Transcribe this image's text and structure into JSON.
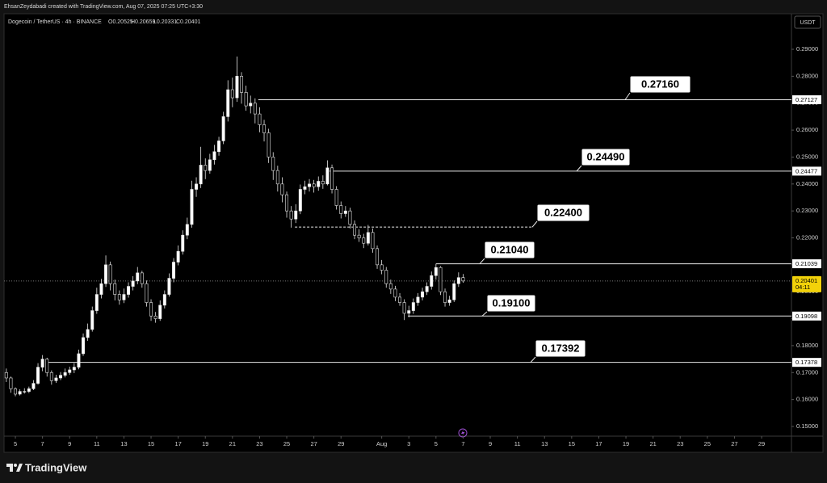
{
  "chart_data": {
    "type": "candlestick",
    "attribution": "EhsanZeydabadi created with TradingView.com, Aug 07, 2025 07:25 UTC+3:30",
    "title": "Dogecoin / TetherUS · 4h · BINANCE",
    "ohlc_labels": [
      "O0.20525",
      "H0.20659",
      "L0.20331",
      "C0.20401"
    ],
    "currency": "USDT",
    "brand": "TradingView",
    "up_color": "#ffffff",
    "down_color": "#000000",
    "border_color": "#e6e6e6",
    "ohlc": [
      [
        0.17,
        0.1715,
        0.1665,
        0.168
      ],
      [
        0.168,
        0.1685,
        0.1625,
        0.164
      ],
      [
        0.164,
        0.1645,
        0.1612,
        0.162
      ],
      [
        0.162,
        0.1638,
        0.1615,
        0.163
      ],
      [
        0.163,
        0.1642,
        0.1622,
        0.163
      ],
      [
        0.163,
        0.1648,
        0.1624,
        0.164
      ],
      [
        0.164,
        0.1672,
        0.1635,
        0.166
      ],
      [
        0.166,
        0.1735,
        0.1655,
        0.172
      ],
      [
        0.172,
        0.1765,
        0.1705,
        0.175
      ],
      [
        0.175,
        0.1755,
        0.1685,
        0.17
      ],
      [
        0.17,
        0.1708,
        0.1655,
        0.167
      ],
      [
        0.167,
        0.1692,
        0.1662,
        0.168
      ],
      [
        0.168,
        0.1702,
        0.1672,
        0.169
      ],
      [
        0.169,
        0.1715,
        0.1682,
        0.17
      ],
      [
        0.17,
        0.1722,
        0.1692,
        0.171
      ],
      [
        0.171,
        0.1735,
        0.1698,
        0.172
      ],
      [
        0.172,
        0.1785,
        0.1712,
        0.177
      ],
      [
        0.177,
        0.1845,
        0.1762,
        0.183
      ],
      [
        0.183,
        0.1882,
        0.1818,
        0.186
      ],
      [
        0.186,
        0.1945,
        0.1852,
        0.193
      ],
      [
        0.193,
        0.2015,
        0.1918,
        0.199
      ],
      [
        0.199,
        0.2048,
        0.1975,
        0.203
      ],
      [
        0.203,
        0.2135,
        0.2018,
        0.21
      ],
      [
        0.21,
        0.2112,
        0.2005,
        0.203
      ],
      [
        0.203,
        0.2045,
        0.1968,
        0.199
      ],
      [
        0.199,
        0.2005,
        0.1952,
        0.197
      ],
      [
        0.197,
        0.2012,
        0.1958,
        0.199
      ],
      [
        0.199,
        0.2035,
        0.1978,
        0.202
      ],
      [
        0.202,
        0.2058,
        0.2005,
        0.204
      ],
      [
        0.204,
        0.2092,
        0.2028,
        0.207
      ],
      [
        0.207,
        0.2078,
        0.2015,
        0.203
      ],
      [
        0.203,
        0.2042,
        0.1945,
        0.196
      ],
      [
        0.196,
        0.1972,
        0.1892,
        0.191
      ],
      [
        0.191,
        0.1925,
        0.1885,
        0.19
      ],
      [
        0.19,
        0.1968,
        0.1892,
        0.195
      ],
      [
        0.195,
        0.2005,
        0.1938,
        0.199
      ],
      [
        0.199,
        0.2068,
        0.1982,
        0.205
      ],
      [
        0.205,
        0.2125,
        0.2035,
        0.211
      ],
      [
        0.211,
        0.2172,
        0.2098,
        0.215
      ],
      [
        0.215,
        0.2228,
        0.2138,
        0.221
      ],
      [
        0.221,
        0.2275,
        0.2195,
        0.225
      ],
      [
        0.225,
        0.2412,
        0.2238,
        0.238
      ],
      [
        0.238,
        0.2425,
        0.2352,
        0.24
      ],
      [
        0.24,
        0.2538,
        0.2385,
        0.247
      ],
      [
        0.247,
        0.2495,
        0.2418,
        0.245
      ],
      [
        0.245,
        0.2512,
        0.2438,
        0.249
      ],
      [
        0.249,
        0.2545,
        0.2472,
        0.252
      ],
      [
        0.252,
        0.2575,
        0.2505,
        0.256
      ],
      [
        0.256,
        0.2668,
        0.2548,
        0.265
      ],
      [
        0.265,
        0.2785,
        0.2632,
        0.275
      ],
      [
        0.275,
        0.2795,
        0.2685,
        0.272
      ],
      [
        0.272,
        0.2873,
        0.2705,
        0.28
      ],
      [
        0.28,
        0.2815,
        0.2698,
        0.274
      ],
      [
        0.274,
        0.2765,
        0.2672,
        0.269
      ],
      [
        0.269,
        0.2728,
        0.2662,
        0.27
      ],
      [
        0.27,
        0.2718,
        0.2625,
        0.266
      ],
      [
        0.266,
        0.2685,
        0.2592,
        0.262
      ],
      [
        0.262,
        0.2638,
        0.2558,
        0.259
      ],
      [
        0.259,
        0.2605,
        0.2478,
        0.25
      ],
      [
        0.25,
        0.2518,
        0.2415,
        0.245
      ],
      [
        0.245,
        0.2468,
        0.2372,
        0.24
      ],
      [
        0.24,
        0.2425,
        0.2332,
        0.236
      ],
      [
        0.236,
        0.2372,
        0.2275,
        0.23
      ],
      [
        0.23,
        0.2318,
        0.2238,
        0.227
      ],
      [
        0.227,
        0.2325,
        0.2255,
        0.23
      ],
      [
        0.23,
        0.2398,
        0.2288,
        0.238
      ],
      [
        0.238,
        0.2412,
        0.2362,
        0.239
      ],
      [
        0.239,
        0.2418,
        0.2372,
        0.24
      ],
      [
        0.24,
        0.2415,
        0.2368,
        0.239
      ],
      [
        0.239,
        0.2428,
        0.2375,
        0.241
      ],
      [
        0.241,
        0.2432,
        0.2382,
        0.24
      ],
      [
        0.24,
        0.2488,
        0.2395,
        0.246
      ],
      [
        0.246,
        0.2472,
        0.2365,
        0.238
      ],
      [
        0.238,
        0.2392,
        0.2305,
        0.232
      ],
      [
        0.232,
        0.2335,
        0.2272,
        0.229
      ],
      [
        0.229,
        0.2318,
        0.2278,
        0.23
      ],
      [
        0.23,
        0.2312,
        0.2235,
        0.225
      ],
      [
        0.225,
        0.2265,
        0.2195,
        0.221
      ],
      [
        0.221,
        0.2232,
        0.2185,
        0.22
      ],
      [
        0.22,
        0.2215,
        0.2162,
        0.218
      ],
      [
        0.218,
        0.2248,
        0.2172,
        0.222
      ],
      [
        0.222,
        0.2235,
        0.2145,
        0.216
      ],
      [
        0.216,
        0.2172,
        0.2085,
        0.21
      ],
      [
        0.21,
        0.2118,
        0.2065,
        0.208
      ],
      [
        0.208,
        0.2092,
        0.2015,
        0.203
      ],
      [
        0.203,
        0.2045,
        0.1992,
        0.201
      ],
      [
        0.201,
        0.2022,
        0.1965,
        0.198
      ],
      [
        0.198,
        0.1995,
        0.1948,
        0.196
      ],
      [
        0.196,
        0.1972,
        0.1895,
        0.192
      ],
      [
        0.192,
        0.1948,
        0.1905,
        0.193
      ],
      [
        0.193,
        0.1975,
        0.1918,
        0.196
      ],
      [
        0.196,
        0.1995,
        0.1948,
        0.198
      ],
      [
        0.198,
        0.2015,
        0.1968,
        0.2
      ],
      [
        0.2,
        0.2035,
        0.1988,
        0.202
      ],
      [
        0.202,
        0.2075,
        0.2008,
        0.206
      ],
      [
        0.206,
        0.2104,
        0.2045,
        0.209
      ],
      [
        0.209,
        0.2095,
        0.1988,
        0.2
      ],
      [
        0.2,
        0.2012,
        0.1945,
        0.196
      ],
      [
        0.196,
        0.1985,
        0.1948,
        0.197
      ],
      [
        0.197,
        0.2042,
        0.1962,
        0.203
      ],
      [
        0.203,
        0.2072,
        0.2018,
        0.20525
      ],
      [
        0.20525,
        0.20659,
        0.20331,
        0.20401
      ]
    ],
    "xlim": [
      -1.4,
      173.6
    ],
    "xticks": [
      {
        "value": 2,
        "label": "5"
      },
      {
        "value": 8,
        "label": "7"
      },
      {
        "value": 14,
        "label": "9"
      },
      {
        "value": 20,
        "label": "11"
      },
      {
        "value": 26,
        "label": "13"
      },
      {
        "value": 32,
        "label": "15"
      },
      {
        "value": 38,
        "label": "17"
      },
      {
        "value": 44,
        "label": "19"
      },
      {
        "value": 50,
        "label": "21"
      },
      {
        "value": 56,
        "label": "23"
      },
      {
        "value": 62,
        "label": "25"
      },
      {
        "value": 68,
        "label": "27"
      },
      {
        "value": 74,
        "label": "29"
      },
      {
        "value": 83,
        "label": "Aug"
      },
      {
        "value": 89,
        "label": "3"
      },
      {
        "value": 95,
        "label": "5"
      },
      {
        "value": 101,
        "label": "7"
      },
      {
        "value": 107,
        "label": "9"
      },
      {
        "value": 113,
        "label": "11"
      },
      {
        "value": 119,
        "label": "13"
      },
      {
        "value": 125,
        "label": "15"
      },
      {
        "value": 131,
        "label": "17"
      },
      {
        "value": 137,
        "label": "19"
      },
      {
        "value": 143,
        "label": "21"
      },
      {
        "value": 149,
        "label": "23"
      },
      {
        "value": 155,
        "label": "25"
      },
      {
        "value": 161,
        "label": "27"
      },
      {
        "value": 167,
        "label": "29"
      }
    ],
    "ylim": [
      0.1464,
      0.3032
    ],
    "yticks": [
      {
        "value": 0.15,
        "label": "0.15000"
      },
      {
        "value": 0.16,
        "label": "0.16000"
      },
      {
        "value": 0.17,
        "label": "0.17000"
      },
      {
        "value": 0.18,
        "label": "0.18000"
      },
      {
        "value": 0.19,
        "label": "0.19000"
      },
      {
        "value": 0.2,
        "label": "0.20000"
      },
      {
        "value": 0.21,
        "label": "0.21000"
      },
      {
        "value": 0.22,
        "label": "0.22000"
      },
      {
        "value": 0.23,
        "label": "0.23000"
      },
      {
        "value": 0.24,
        "label": "0.24000"
      },
      {
        "value": 0.25,
        "label": "0.25000"
      },
      {
        "value": 0.26,
        "label": "0.26000"
      },
      {
        "value": 0.27,
        "label": "0.27000"
      },
      {
        "value": 0.28,
        "label": "0.28000"
      },
      {
        "value": 0.29,
        "label": "0.29000"
      }
    ],
    "grid": false,
    "levels": [
      {
        "value": 0.27127,
        "from": 55.7,
        "callout": "0.27160",
        "style": "solid"
      },
      {
        "value": 0.24477,
        "from": 71.5,
        "callout": "0.24490",
        "style": "solid"
      },
      {
        "value": 0.224,
        "from": 63.8,
        "to": 116.5,
        "callout": "0.22400",
        "style": "dashed"
      },
      {
        "value": 0.21039,
        "from": 95,
        "callout": "0.21040",
        "style": "solid"
      },
      {
        "value": 0.19098,
        "from": 88.8,
        "callout": "0.19100",
        "style": "solid"
      },
      {
        "value": 0.17378,
        "from": 9.3,
        "callout": "0.17392",
        "style": "solid"
      }
    ],
    "last_price": 0.20401,
    "countdown": "04:11"
  }
}
